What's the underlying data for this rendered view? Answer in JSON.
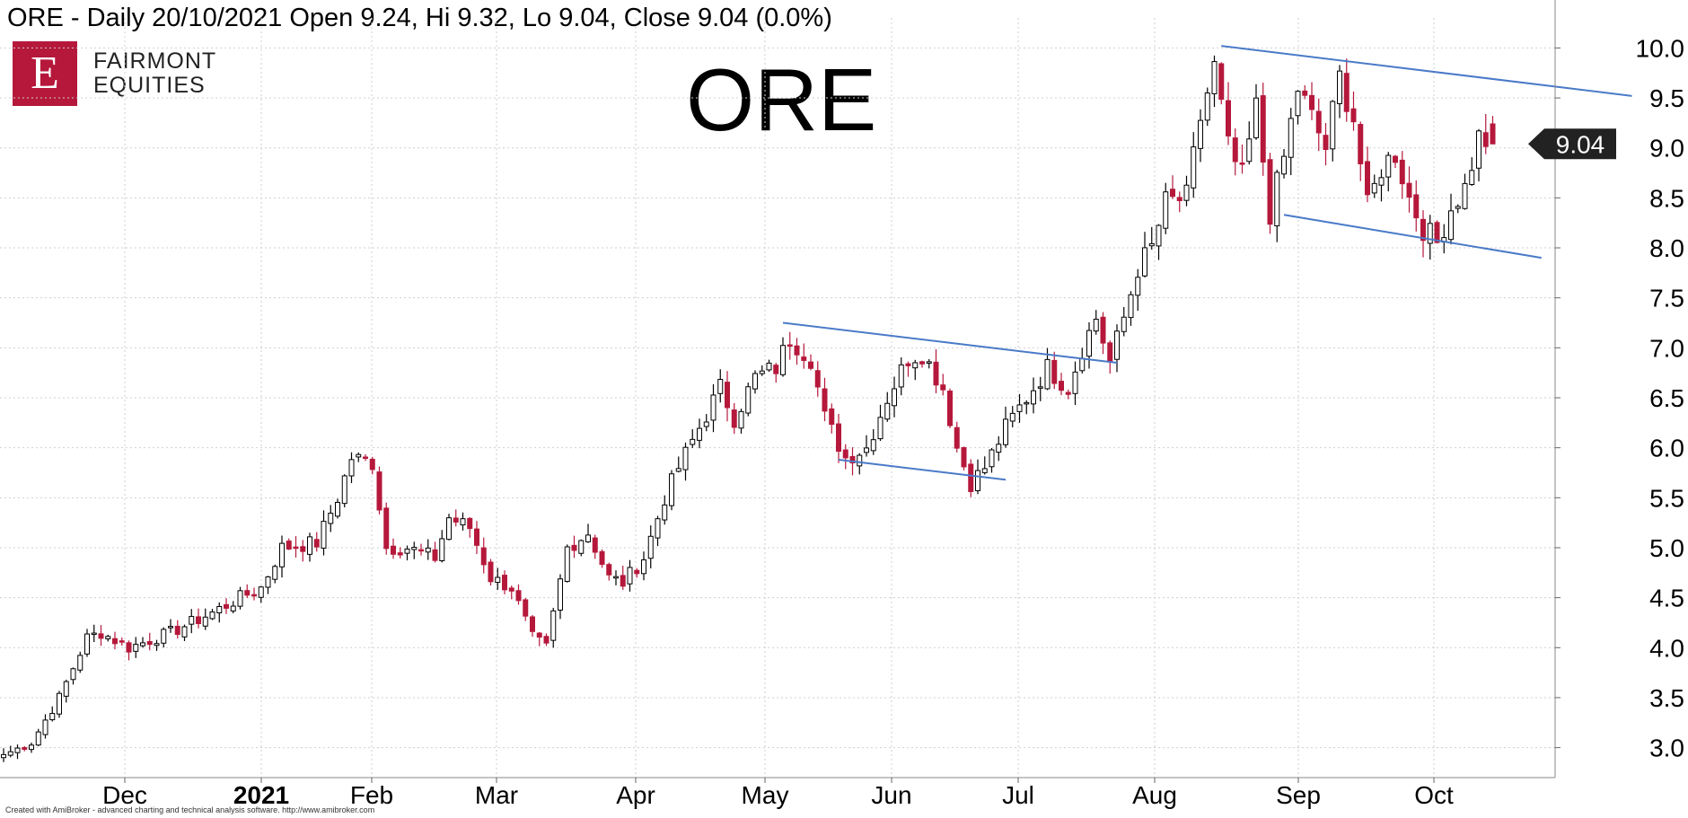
{
  "header": {
    "text": "ORE - Daily 20/10/2021 Open 9.24, Hi 9.32, Lo 9.04, Close 9.04 (0.0%)"
  },
  "logo": {
    "mark": "E",
    "line1": "FAIRMONT",
    "line2": "EQUITIES"
  },
  "footer": {
    "text": "Created with AmiBroker - advanced charting and technical analysis software. http://www.amibroker.com"
  },
  "colors": {
    "up_body": "#ffffff",
    "up_outline": "#000000",
    "down_body": "#b5183b",
    "trendline": "#4a7ac8",
    "grid": "#cfcfcf",
    "price_tag": "#222222"
  },
  "chart_data": {
    "type": "candlestick",
    "title": "ORE",
    "ticker": "ORE",
    "ylim": [
      2.7,
      10.3
    ],
    "y_ticks": [
      "3.0",
      "3.5",
      "4.0",
      "4.5",
      "5.0",
      "5.5",
      "6.0",
      "6.5",
      "7.0",
      "7.5",
      "8.0",
      "8.5",
      "9.0",
      "9.5",
      "10.0"
    ],
    "x_labels": [
      {
        "label": "Dec",
        "bold": false
      },
      {
        "label": "2021",
        "bold": true
      },
      {
        "label": "Feb",
        "bold": false
      },
      {
        "label": "Mar",
        "bold": false
      },
      {
        "label": "Apr",
        "bold": false
      },
      {
        "label": "May",
        "bold": false
      },
      {
        "label": "Jun",
        "bold": false
      },
      {
        "label": "Jul",
        "bold": false
      },
      {
        "label": "Aug",
        "bold": false
      },
      {
        "label": "Sep",
        "bold": false
      },
      {
        "label": "Oct",
        "bold": false
      }
    ],
    "last_price": "9.04",
    "anchors": [
      {
        "i": 0,
        "p": 2.93
      },
      {
        "i": 4,
        "p": 3.05
      },
      {
        "i": 8,
        "p": 3.5
      },
      {
        "i": 12,
        "p": 4.1
      },
      {
        "i": 14,
        "p": 4.15
      },
      {
        "i": 18,
        "p": 4.0
      },
      {
        "i": 24,
        "p": 4.15
      },
      {
        "i": 30,
        "p": 4.35
      },
      {
        "i": 34,
        "p": 4.5
      },
      {
        "i": 37,
        "p": 4.6
      },
      {
        "i": 40,
        "p": 5.0
      },
      {
        "i": 45,
        "p": 5.05
      },
      {
        "i": 48,
        "p": 5.5
      },
      {
        "i": 50,
        "p": 5.9
      },
      {
        "i": 53,
        "p": 5.85
      },
      {
        "i": 55,
        "p": 5.0
      },
      {
        "i": 58,
        "p": 5.0
      },
      {
        "i": 62,
        "p": 4.9
      },
      {
        "i": 64,
        "p": 5.3
      },
      {
        "i": 67,
        "p": 5.2
      },
      {
        "i": 70,
        "p": 4.7
      },
      {
        "i": 73,
        "p": 4.6
      },
      {
        "i": 76,
        "p": 4.1
      },
      {
        "i": 78,
        "p": 4.0
      },
      {
        "i": 81,
        "p": 5.0
      },
      {
        "i": 84,
        "p": 5.15
      },
      {
        "i": 87,
        "p": 4.7
      },
      {
        "i": 89,
        "p": 4.65
      },
      {
        "i": 92,
        "p": 4.9
      },
      {
        "i": 95,
        "p": 5.5
      },
      {
        "i": 97,
        "p": 5.8
      },
      {
        "i": 100,
        "p": 6.2
      },
      {
        "i": 103,
        "p": 6.6
      },
      {
        "i": 105,
        "p": 6.3
      },
      {
        "i": 108,
        "p": 6.7
      },
      {
        "i": 111,
        "p": 6.8
      },
      {
        "i": 113,
        "p": 7.1
      },
      {
        "i": 116,
        "p": 6.9
      },
      {
        "i": 118,
        "p": 6.3
      },
      {
        "i": 121,
        "p": 5.9
      },
      {
        "i": 124,
        "p": 6.0
      },
      {
        "i": 127,
        "p": 6.5
      },
      {
        "i": 130,
        "p": 6.9
      },
      {
        "i": 132,
        "p": 6.95
      },
      {
        "i": 135,
        "p": 6.6
      },
      {
        "i": 137,
        "p": 6.0
      },
      {
        "i": 139,
        "p": 5.65
      },
      {
        "i": 141,
        "p": 5.8
      },
      {
        "i": 144,
        "p": 6.2
      },
      {
        "i": 147,
        "p": 6.5
      },
      {
        "i": 150,
        "p": 6.8
      },
      {
        "i": 153,
        "p": 6.6
      },
      {
        "i": 155,
        "p": 7.0
      },
      {
        "i": 157,
        "p": 7.3
      },
      {
        "i": 159,
        "p": 6.85
      },
      {
        "i": 161,
        "p": 7.3
      },
      {
        "i": 163,
        "p": 7.8
      },
      {
        "i": 165,
        "p": 8.0
      },
      {
        "i": 167,
        "p": 8.45
      },
      {
        "i": 170,
        "p": 8.5
      },
      {
        "i": 172,
        "p": 9.3
      },
      {
        "i": 174,
        "p": 9.8
      },
      {
        "i": 176,
        "p": 9.0
      },
      {
        "i": 178,
        "p": 8.7
      },
      {
        "i": 180,
        "p": 9.4
      },
      {
        "i": 182,
        "p": 8.35
      },
      {
        "i": 184,
        "p": 8.9
      },
      {
        "i": 186,
        "p": 9.6
      },
      {
        "i": 188,
        "p": 9.3
      },
      {
        "i": 190,
        "p": 9.0
      },
      {
        "i": 192,
        "p": 9.7
      },
      {
        "i": 194,
        "p": 9.3
      },
      {
        "i": 196,
        "p": 8.4
      },
      {
        "i": 198,
        "p": 8.8
      },
      {
        "i": 200,
        "p": 8.95
      },
      {
        "i": 202,
        "p": 8.5
      },
      {
        "i": 204,
        "p": 8.2
      },
      {
        "i": 206,
        "p": 8.05
      },
      {
        "i": 208,
        "p": 8.4
      },
      {
        "i": 210,
        "p": 8.6
      },
      {
        "i": 212,
        "p": 9.1
      },
      {
        "i": 214,
        "p": 9.04
      }
    ],
    "trendlines": [
      {
        "name": "may-upper",
        "x1": 112,
        "y1": 7.25,
        "x2": 160,
        "y2": 6.85
      },
      {
        "name": "may-lower",
        "x1": 120,
        "y1": 5.88,
        "x2": 144,
        "y2": 5.68
      },
      {
        "name": "aug-upper",
        "x1": 175,
        "y1": 10.02,
        "x2": 234,
        "y2": 9.52
      },
      {
        "name": "aug-lower",
        "x1": 184,
        "y1": 8.33,
        "x2": 221,
        "y2": 7.9
      }
    ]
  }
}
